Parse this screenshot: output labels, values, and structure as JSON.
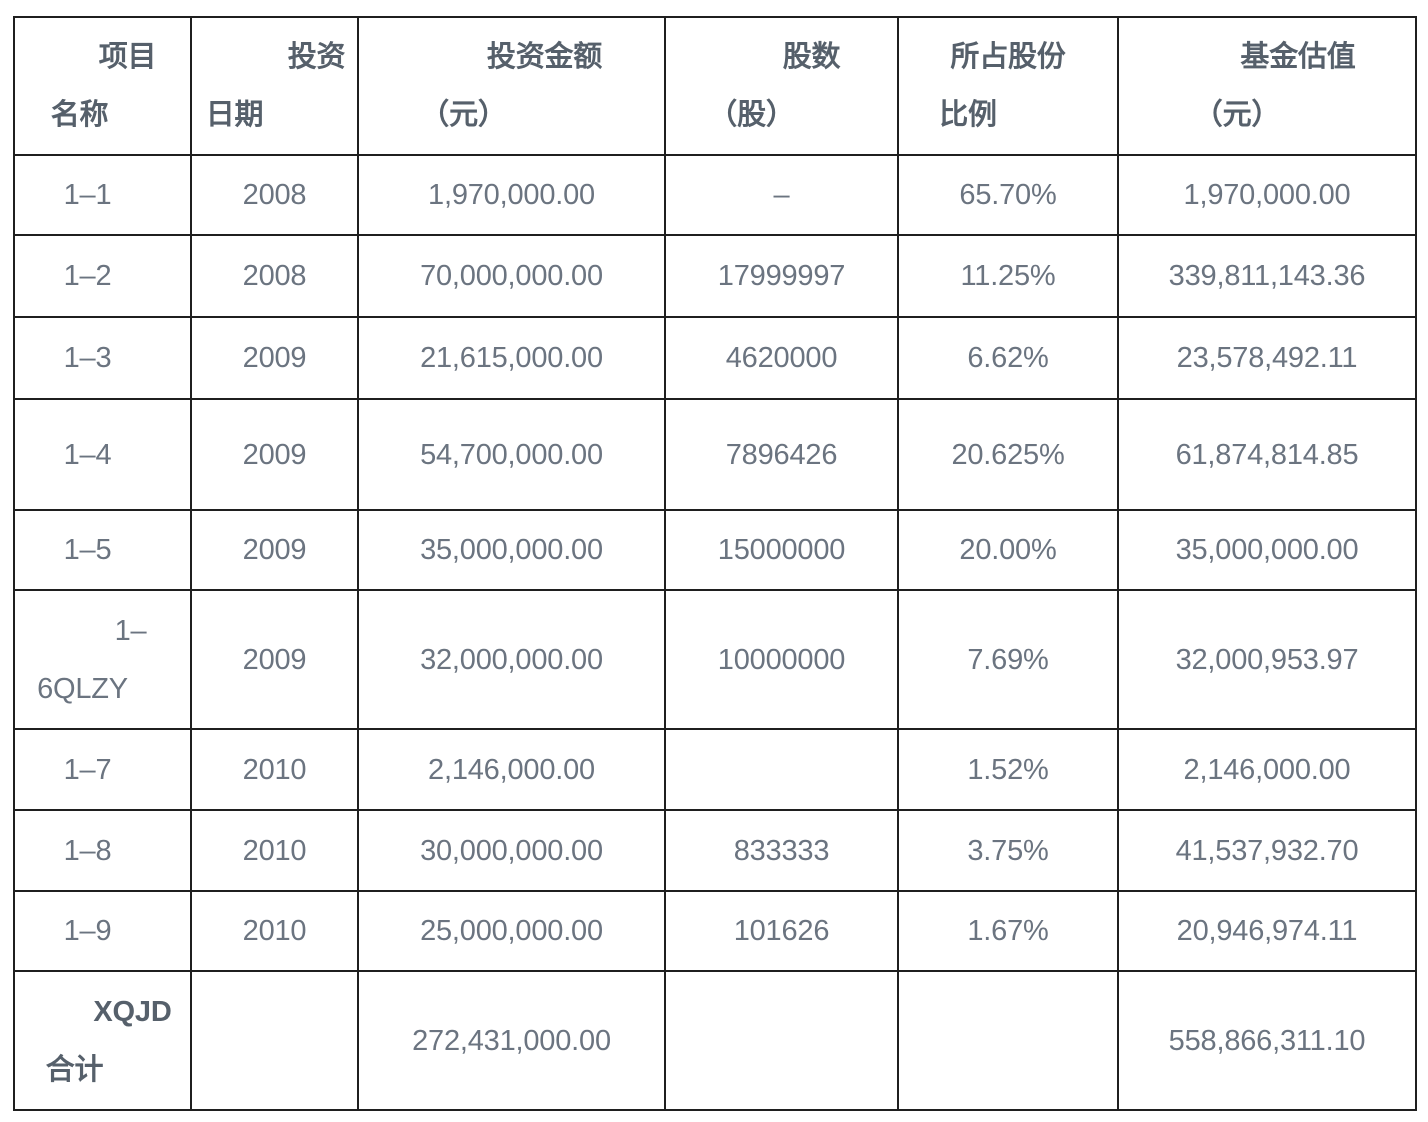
{
  "table": {
    "headers": [
      {
        "line1": "项目",
        "line2": "名称"
      },
      {
        "line1": "投资",
        "line2": "日期"
      },
      {
        "line1": "投资金额",
        "line2": "（元）"
      },
      {
        "line1": "股数",
        "line2": "（股）"
      },
      {
        "line1": "所占股份",
        "line2": "比例"
      },
      {
        "line1": "基金估值",
        "line2": "（元）"
      }
    ],
    "rows": [
      {
        "name": "1–1",
        "date": "2008",
        "amount": "1,970,000.00",
        "shares": "–",
        "ratio": "65.70%",
        "valuation": "1,970,000.00"
      },
      {
        "name": "1–2",
        "date": "2008",
        "amount": "70,000,000.00",
        "shares": "17999997",
        "ratio": "11.25%",
        "valuation": "339,811,143.36"
      },
      {
        "name": "1–3",
        "date": "2009",
        "amount": "21,615,000.00",
        "shares": "4620000",
        "ratio": "6.62%",
        "valuation": "23,578,492.11"
      },
      {
        "name": "1–4",
        "date": "2009",
        "amount": "54,700,000.00",
        "shares": "7896426",
        "ratio": "20.625%",
        "valuation": "61,874,814.85"
      },
      {
        "name": "1–5",
        "date": "2009",
        "amount": "35,000,000.00",
        "shares": "15000000",
        "ratio": "20.00%",
        "valuation": "35,000,000.00"
      },
      {
        "name_line1": "1–",
        "name_line2": "6QLZY",
        "date": "2009",
        "amount": "32,000,000.00",
        "shares": "10000000",
        "ratio": "7.69%",
        "valuation": "32,000,953.97"
      },
      {
        "name": "1–7",
        "date": "2010",
        "amount": "2,146,000.00",
        "shares": "",
        "ratio": "1.52%",
        "valuation": "2,146,000.00"
      },
      {
        "name": "1–8",
        "date": "2010",
        "amount": "30,000,000.00",
        "shares": "833333",
        "ratio": "3.75%",
        "valuation": "41,537,932.70"
      },
      {
        "name": "1–9",
        "date": "2010",
        "amount": "25,000,000.00",
        "shares": "101626",
        "ratio": "1.67%",
        "valuation": "20,946,974.11"
      }
    ],
    "total": {
      "name_line1": "XQJD",
      "name_line2": "合计",
      "amount": "272,431,000.00",
      "valuation": "558,866,311.10"
    }
  }
}
